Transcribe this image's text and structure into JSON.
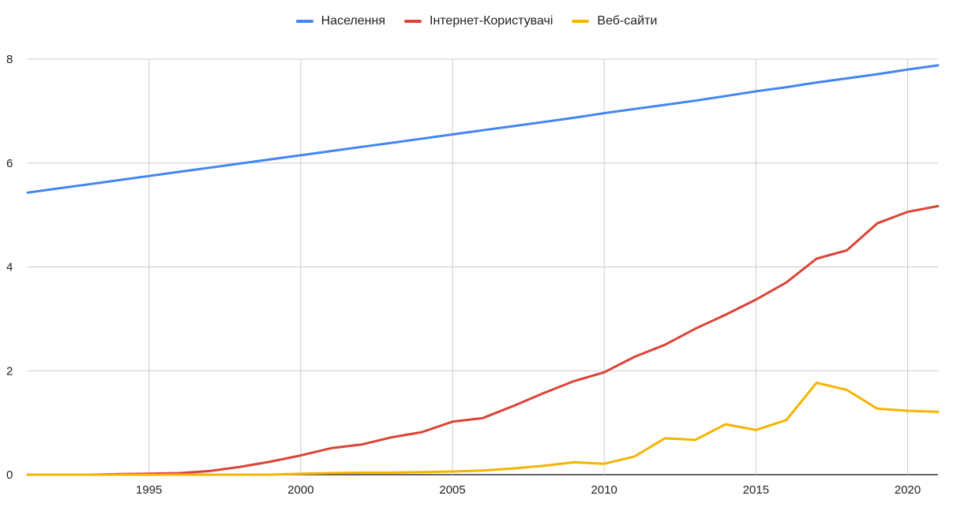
{
  "chart_data": {
    "type": "line",
    "title": "",
    "xlabel": "",
    "ylabel": "",
    "x": [
      1991,
      1992,
      1993,
      1994,
      1995,
      1996,
      1997,
      1998,
      1999,
      2000,
      2001,
      2002,
      2003,
      2004,
      2005,
      2006,
      2007,
      2008,
      2009,
      2010,
      2011,
      2012,
      2013,
      2014,
      2015,
      2016,
      2017,
      2018,
      2019,
      2020,
      2021
    ],
    "xlim": [
      1991,
      2021
    ],
    "ylim": [
      0,
      8
    ],
    "xticks": [
      1995,
      2000,
      2005,
      2010,
      2015,
      2020
    ],
    "yticks": [
      0,
      2,
      4,
      6,
      8
    ],
    "grid": true,
    "legend_position": "top",
    "series": [
      {
        "name": "Населення",
        "color": "#4285f4",
        "values": [
          5.43,
          5.51,
          5.59,
          5.67,
          5.75,
          5.83,
          5.91,
          5.99,
          6.07,
          6.15,
          6.23,
          6.31,
          6.39,
          6.47,
          6.55,
          6.63,
          6.71,
          6.79,
          6.87,
          6.96,
          7.04,
          7.12,
          7.2,
          7.29,
          7.38,
          7.46,
          7.55,
          7.63,
          7.71,
          7.8,
          7.88
        ]
      },
      {
        "name": "Інтернет-Користувачі",
        "color": "#db4437",
        "values": [
          0.0,
          0.0,
          0.0,
          0.01,
          0.02,
          0.03,
          0.07,
          0.15,
          0.25,
          0.37,
          0.51,
          0.58,
          0.72,
          0.82,
          1.02,
          1.09,
          1.32,
          1.57,
          1.8,
          1.97,
          2.27,
          2.5,
          2.81,
          3.08,
          3.37,
          3.7,
          4.16,
          4.32,
          4.84,
          5.06,
          5.17
        ]
      },
      {
        "name": "Веб-сайти",
        "color": "#f4b400",
        "values": [
          0.0,
          0.0,
          0.0,
          0.0,
          0.0,
          0.0,
          0.0,
          0.0,
          0.0,
          0.02,
          0.03,
          0.04,
          0.04,
          0.05,
          0.06,
          0.08,
          0.12,
          0.17,
          0.24,
          0.21,
          0.35,
          0.7,
          0.67,
          0.97,
          0.86,
          1.05,
          1.77,
          1.63,
          1.27,
          1.23,
          1.21
        ]
      }
    ]
  }
}
